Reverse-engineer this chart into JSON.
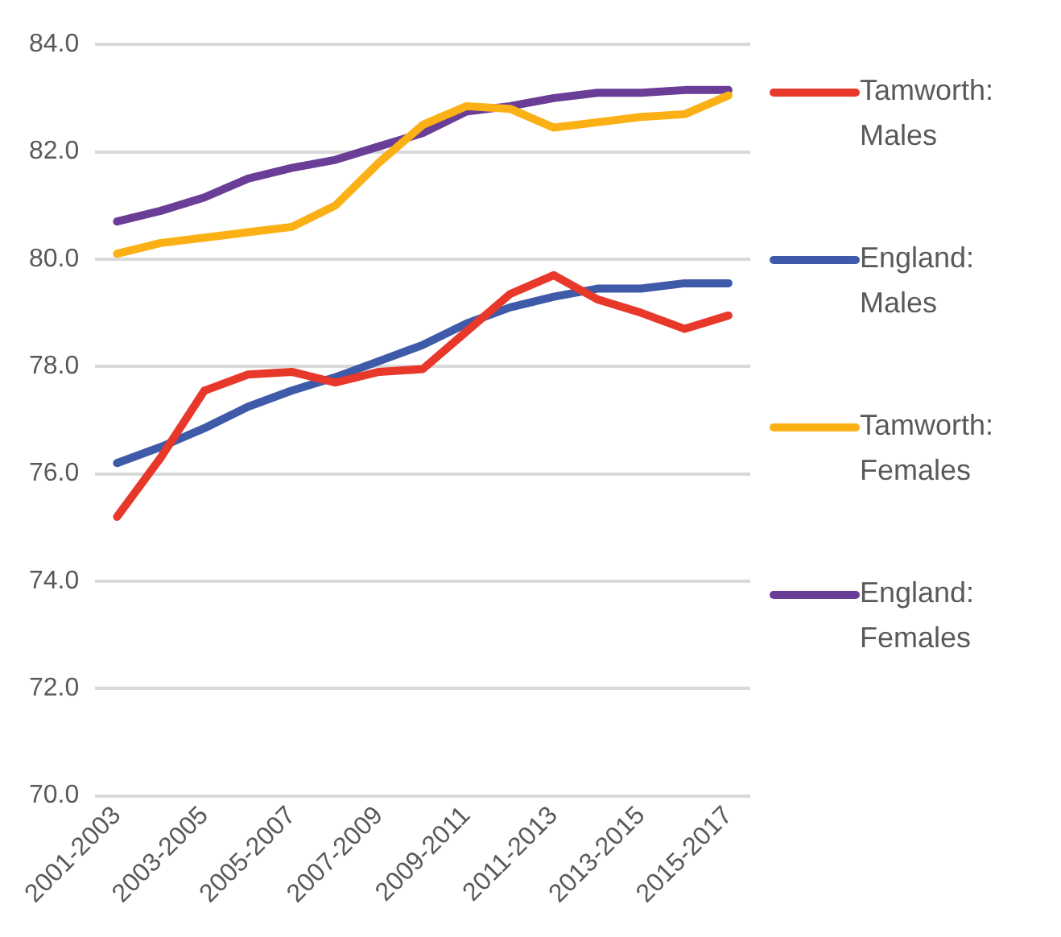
{
  "chart_data": {
    "type": "line",
    "categories": [
      "2001-2003",
      null,
      "2003-2005",
      null,
      "2005-2007",
      null,
      "2007-2009",
      null,
      "2009-2011",
      null,
      "2011-2013",
      null,
      "2013-2015",
      null,
      "2015-2017"
    ],
    "series": [
      {
        "name": "Tamworth: Males",
        "color": "#e8382a",
        "values": [
          75.2,
          76.3,
          77.55,
          77.85,
          77.9,
          77.7,
          77.9,
          77.95,
          78.65,
          79.35,
          79.7,
          79.25,
          79.0,
          78.7,
          78.95
        ]
      },
      {
        "name": "England: Males",
        "color": "#3f5aa8",
        "values": [
          76.2,
          76.5,
          76.85,
          77.25,
          77.55,
          77.8,
          78.1,
          78.4,
          78.8,
          79.1,
          79.3,
          79.45,
          79.45,
          79.55,
          79.55
        ]
      },
      {
        "name": "Tamworth: Females",
        "color": "#fbb116",
        "values": [
          80.1,
          80.3,
          80.4,
          80.5,
          80.6,
          81.0,
          81.8,
          82.5,
          82.85,
          82.8,
          82.45,
          82.55,
          82.65,
          82.7,
          83.05
        ]
      },
      {
        "name": "England: Females",
        "color": "#6a3d96",
        "values": [
          80.7,
          80.9,
          81.15,
          81.5,
          81.7,
          81.85,
          82.1,
          82.35,
          82.75,
          82.85,
          83.0,
          83.1,
          83.1,
          83.15,
          83.15
        ]
      }
    ],
    "ylim": [
      70,
      84
    ],
    "yticks": [
      {
        "value": 70,
        "label": "70.0"
      },
      {
        "value": 72,
        "label": "72.0"
      },
      {
        "value": 74,
        "label": "74.0"
      },
      {
        "value": 76,
        "label": "76.0"
      },
      {
        "value": 78,
        "label": "78.0"
      },
      {
        "value": 80,
        "label": "80.0"
      },
      {
        "value": 82,
        "label": "82.0"
      },
      {
        "value": 84,
        "label": "84.0"
      }
    ],
    "grid": "y",
    "legend": "right",
    "marker": "none",
    "line_style": "solid"
  }
}
